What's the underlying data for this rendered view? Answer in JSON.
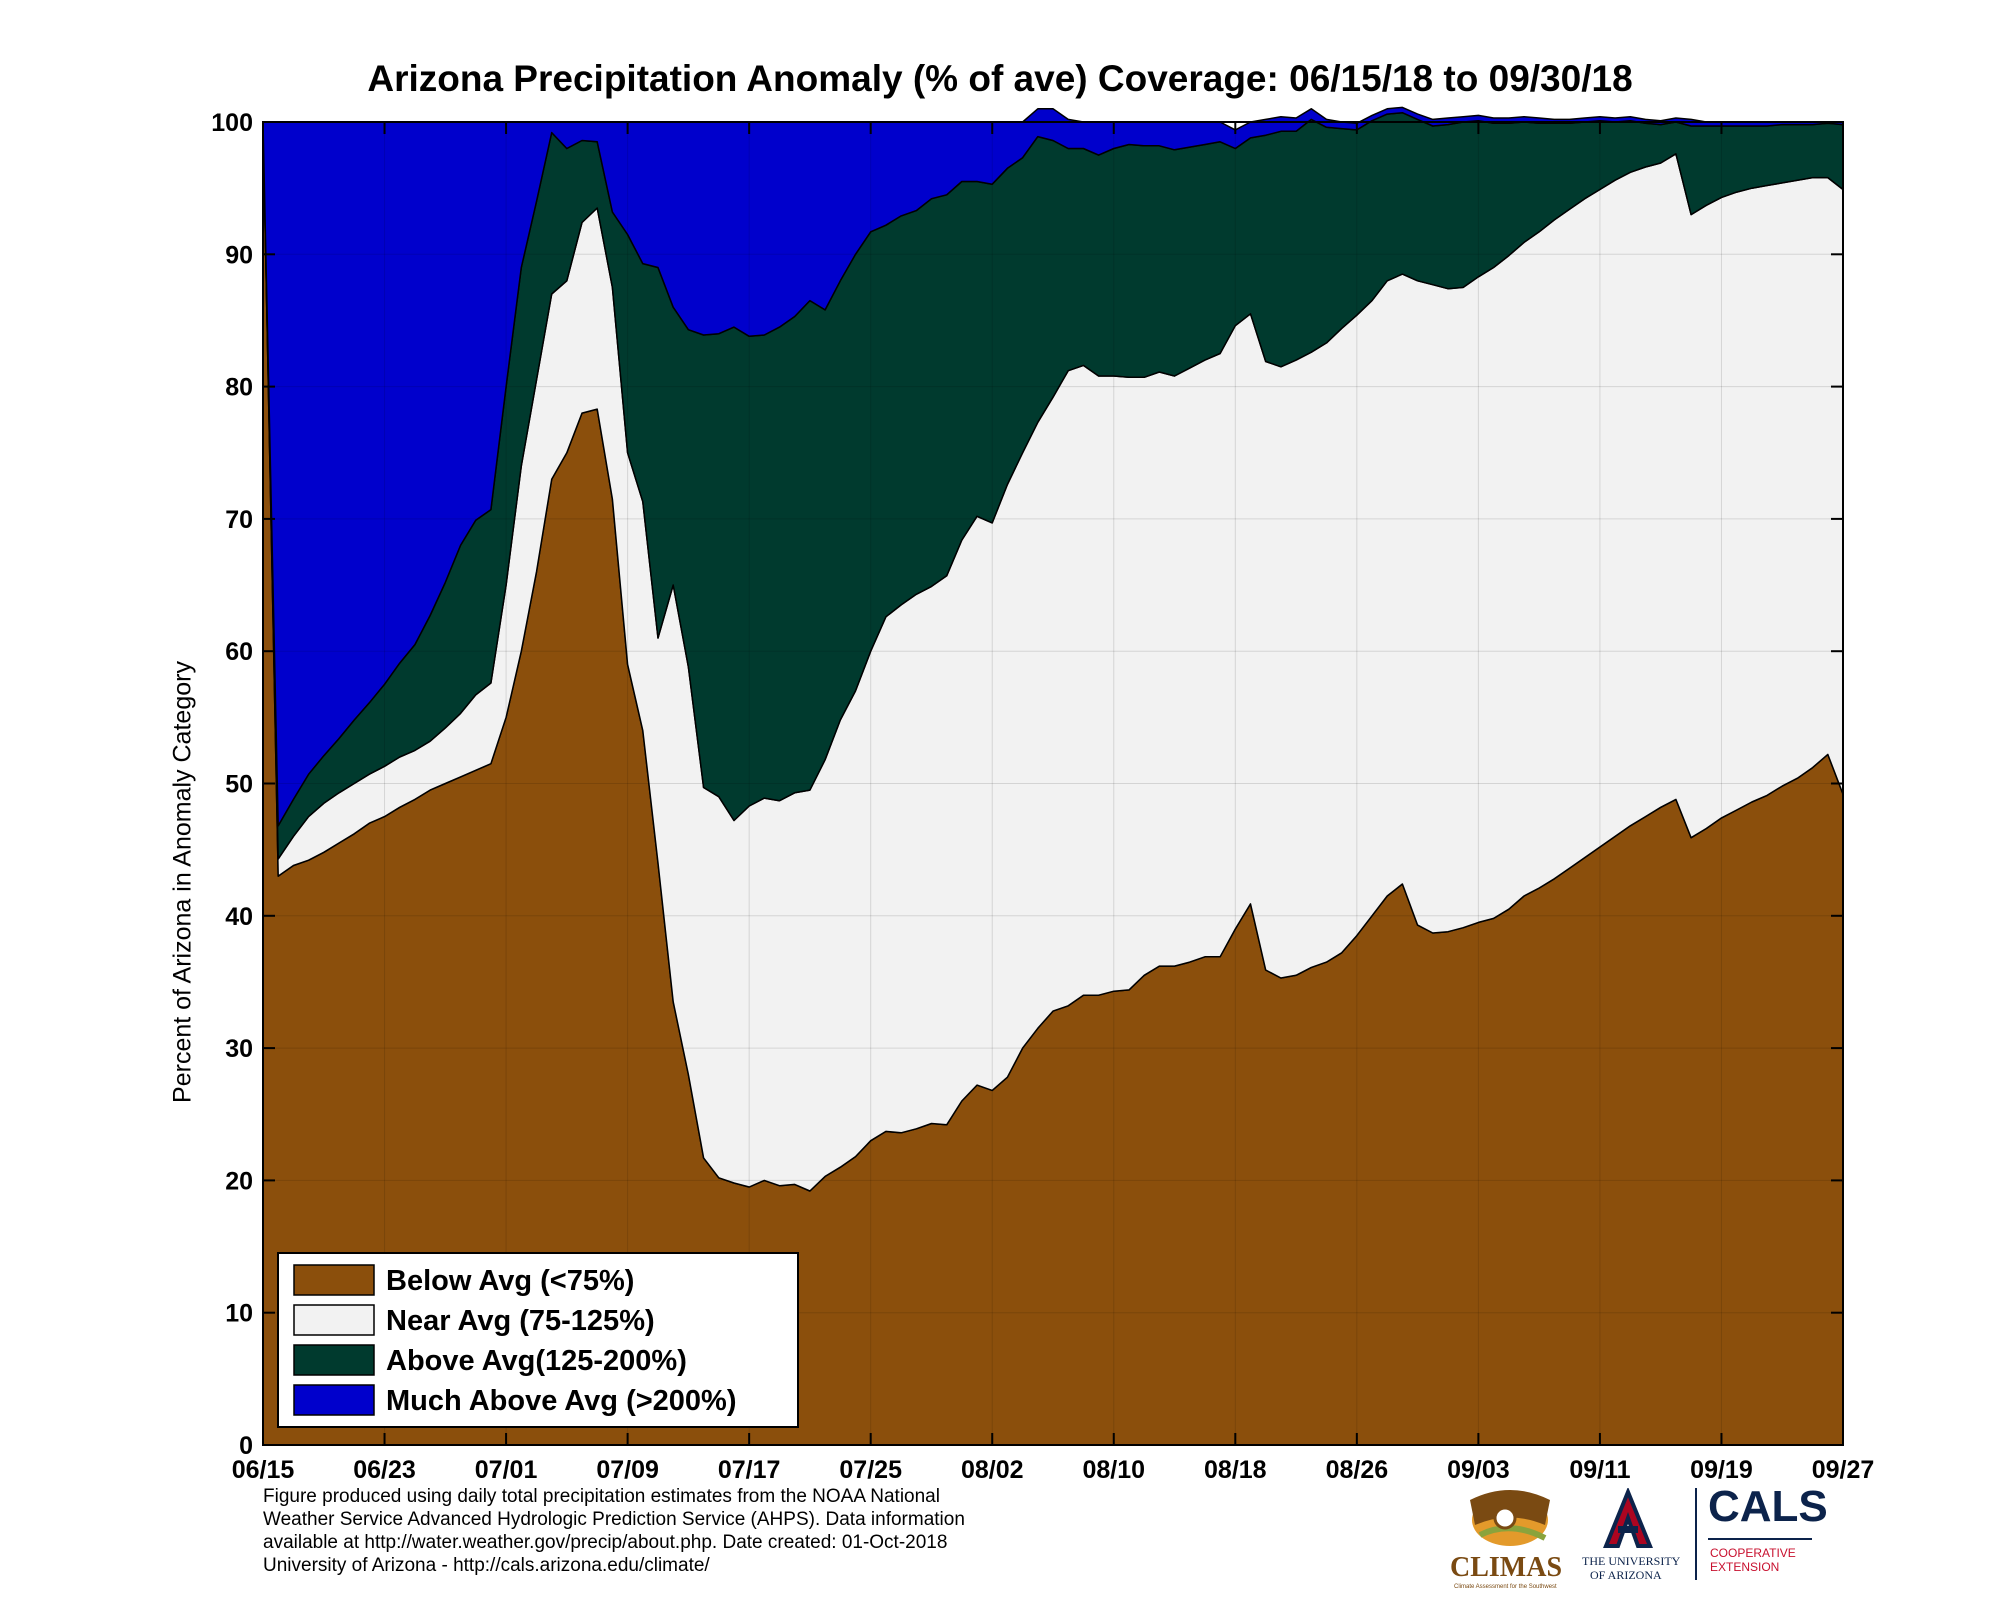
{
  "chart_data": {
    "type": "area",
    "stacked": true,
    "title": "Arizona Precipitation Anomaly (% of ave) Coverage: 06/15/18 to 09/30/18",
    "xlabel": "",
    "ylabel": "Percent of Arizona in Anomaly Category",
    "ylim": [
      0,
      100
    ],
    "yticks": [
      "0",
      "10",
      "20",
      "30",
      "40",
      "50",
      "60",
      "70",
      "80",
      "90",
      "100"
    ],
    "xtick_labels": [
      "06/15",
      "06/23",
      "07/01",
      "07/09",
      "07/17",
      "07/25",
      "08/02",
      "08/10",
      "08/18",
      "08/26",
      "09/03",
      "09/11",
      "09/19",
      "09/27"
    ],
    "xtick_days": [
      0,
      8,
      16,
      24,
      32,
      40,
      48,
      56,
      64,
      72,
      80,
      88,
      96,
      104
    ],
    "x_start": "06/15/18",
    "x_end": "09/30/18",
    "grid": true,
    "legend_position": "bottom-left",
    "series": [
      {
        "name": "Below Avg (<75%)",
        "color": "#8B4F0C",
        "values": [
          100,
          43,
          43.8,
          44.2,
          44.8,
          45.5,
          46.2,
          47,
          47.5,
          48.2,
          48.8,
          49.5,
          50,
          50.5,
          51,
          51.5,
          55,
          60,
          66,
          73,
          75,
          78,
          78.3,
          71.5,
          59,
          54,
          44,
          33.5,
          28,
          21.7,
          20.2,
          19.8,
          19.5,
          20,
          19.6,
          19.7,
          19.2,
          20.3,
          21,
          21.8,
          23,
          23.7,
          23.6,
          23.9,
          24.3,
          24.2,
          26,
          27.2,
          26.8,
          27.8,
          30,
          31.5,
          32.8,
          33.2,
          34,
          34,
          34.3,
          34.4,
          35.5,
          36.2,
          36.2,
          36.5,
          36.9,
          36.9,
          39,
          40.9,
          35.9,
          35.3,
          35.5,
          36.1,
          36.5,
          37.2,
          38.5,
          40,
          41.5,
          42.4,
          39.3,
          38.7,
          38.8,
          39.1,
          39.5,
          39.8,
          40.5,
          41.5,
          42.1,
          42.8,
          43.6,
          44.4,
          45.2,
          46,
          46.8,
          47.5,
          48.2,
          48.8,
          45.9,
          46.6,
          47.4,
          48,
          48.6,
          49.1,
          49.8,
          50.4,
          51.2,
          52.2,
          49.2
        ]
      },
      {
        "name": "Near Avg (75-125%)",
        "color": "#F2F2F2",
        "values": [
          0,
          1.3,
          2.2,
          3.3,
          3.7,
          3.8,
          3.8,
          3.7,
          3.8,
          3.8,
          3.7,
          3.7,
          4.2,
          4.8,
          5.7,
          6.1,
          10,
          14,
          14.5,
          14,
          13,
          14.4,
          15.2,
          16,
          16,
          17.3,
          17,
          31.5,
          30.8,
          28,
          28.8,
          27.4,
          28.8,
          28.9,
          29.1,
          29.6,
          30.3,
          31.5,
          33.8,
          35.2,
          37,
          38.9,
          39.9,
          40.4,
          40.6,
          41.5,
          42.4,
          43,
          42.9,
          44.8,
          45,
          45.8,
          46.4,
          48,
          47.6,
          46.8,
          46.5,
          46.3,
          45.2,
          44.9,
          44.6,
          44.9,
          45.1,
          45.6,
          45.6,
          44.6,
          46,
          46.2,
          46.5,
          46.5,
          46.8,
          47.2,
          46.9,
          46.5,
          46.5,
          46.1,
          48.7,
          49,
          48.6,
          48.4,
          48.8,
          49.2,
          49.4,
          49.4,
          49.6,
          49.8,
          49.8,
          49.8,
          49.7,
          49.6,
          49.4,
          49.1,
          48.7,
          48.8,
          47.1,
          47.1,
          46.9,
          46.7,
          46.4,
          46.1,
          45.6,
          45.2,
          44.6,
          43.6,
          45.7
        ]
      },
      {
        "name": "Above Avg(125-200%)",
        "color": "#003A2E",
        "values": [
          0,
          2.5,
          2.8,
          3.2,
          3.6,
          4.1,
          4.8,
          5.4,
          6.2,
          7.1,
          8,
          9.5,
          11,
          12.7,
          13.2,
          13.1,
          15,
          15,
          13.5,
          12.2,
          10,
          6.2,
          5,
          5.7,
          16.5,
          18,
          28,
          21,
          25.5,
          34.2,
          35,
          37.3,
          35.5,
          35,
          35.8,
          36,
          37,
          34,
          33.2,
          33,
          31.7,
          29.6,
          29.4,
          29,
          29.3,
          28.8,
          27.1,
          25.3,
          25.6,
          23.9,
          22.3,
          21.6,
          19.4,
          16.8,
          16.4,
          16.7,
          17.2,
          17.6,
          17.5,
          17.1,
          17.1,
          16.7,
          16.3,
          16,
          13.4,
          13.3,
          17.1,
          17.8,
          17.3,
          17.6,
          16.3,
          15.1,
          14,
          13.6,
          12.6,
          12.2,
          12.2,
          12,
          12.4,
          12.5,
          11.8,
          10.9,
          10,
          9.1,
          8.2,
          7.3,
          6.5,
          5.8,
          5.2,
          4.4,
          3.9,
          3.3,
          2.9,
          2.4,
          6.7,
          6,
          5.4,
          5,
          4.7,
          4.5,
          4.4,
          4.2,
          4,
          4.1,
          4.9
        ]
      },
      {
        "name": "Much Above Avg (>200%)",
        "color": "#0000CC",
        "values": [
          0,
          53.2,
          51.2,
          49.3,
          47.9,
          46.6,
          45.2,
          43.9,
          42.5,
          40.9,
          39.5,
          37.3,
          34.8,
          32,
          30.1,
          29.3,
          20,
          11,
          6,
          0.8,
          2,
          1.4,
          1.5,
          6.8,
          8.5,
          10.7,
          11,
          14,
          15.7,
          16.1,
          16,
          15.5,
          16.2,
          16.1,
          15.5,
          14.7,
          13.5,
          14.2,
          12,
          10,
          8.3,
          7.8,
          7.1,
          6.7,
          5.8,
          5.5,
          4.5,
          4.5,
          4.7,
          3.5,
          2.7,
          2.1,
          2.4,
          2.2,
          2,
          2.5,
          2,
          1.7,
          1.8,
          1.8,
          2.1,
          1.9,
          1.7,
          1.5,
          1.4,
          1.2,
          1.2,
          1.1,
          1,
          0.8,
          0.6,
          0.5,
          0.5,
          0.4,
          0.4,
          0.4,
          0.4,
          0.5,
          0.5,
          0.4,
          0.4,
          0.4,
          0.4,
          0.4,
          0.4,
          0.3,
          0.3,
          0.3,
          0.3,
          0.3,
          0.3,
          0.3,
          0.3,
          0.3,
          0.5,
          0.3,
          0.3,
          0.3,
          0.3,
          0.3,
          0.2,
          0.2,
          0.2,
          0.1,
          0.2
        ]
      }
    ]
  },
  "footnote": [
    "Figure produced using daily total precipitation estimates from the NOAA National",
    "Weather Service Advanced Hydrologic Prediction Service (AHPS). Data information",
    "available at http://water.weather.gov/precip/about.php. Date created: 01-Oct-2018",
    "University of Arizona - http://cals.arizona.edu/climate/"
  ],
  "logos": {
    "climas": "CLIMAS",
    "climas_tagline": "Climate Assessment for the Southwest",
    "ua_line1": "THE UNIVERSITY",
    "ua_line2": "OF ARIZONA",
    "cals": "CALS",
    "cals_line1": "COOPERATIVE",
    "cals_line2": "EXTENSION",
    "colors": {
      "climas_brown": "#7A4A12",
      "climas_orange": "#E39A2B",
      "climas_green": "#8AA33C",
      "ua_red": "#AB0520",
      "ua_navy": "#0C234B",
      "cals_red": "#C8102E"
    }
  }
}
